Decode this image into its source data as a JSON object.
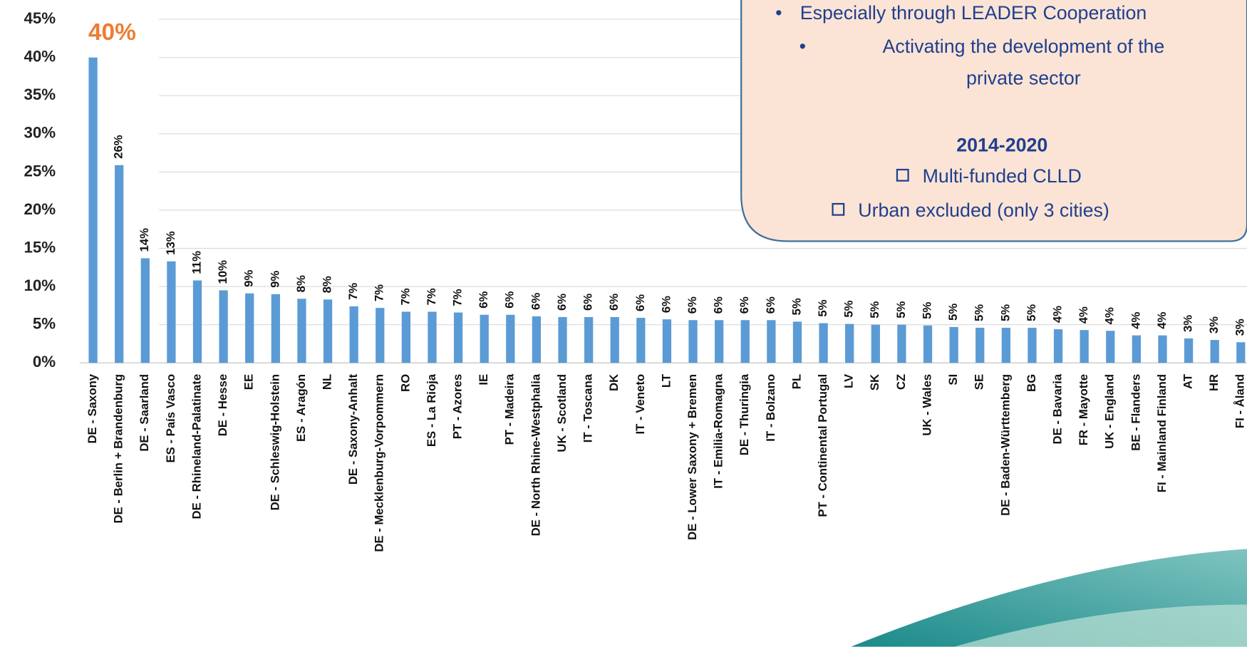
{
  "chart_data": {
    "type": "bar",
    "categories": [
      "DE - Saxony",
      "DE - Berlin + Brandenburg",
      "DE - Saarland",
      "ES - País Vasco",
      "DE - Rhineland-Palatinate",
      "DE - Hesse",
      "EE",
      "DE - Schleswig-Holstein",
      "ES - Aragón",
      "NL",
      "DE - Saxony-Anhalt",
      "DE - Mecklenburg-Vorpommern",
      "RO",
      "ES - La Rioja",
      "PT - Azores",
      "IE",
      "PT - Madeira",
      "DE - North Rhine-Westphalia",
      "UK - Scotland",
      "IT - Toscana",
      "DK",
      "IT - Veneto",
      "LT",
      "DE - Lower Saxony + Bremen",
      "IT - Emilia-Romagna",
      "DE - Thuringia",
      "IT - Bolzano",
      "PL",
      "PT - Continental Portugal",
      "LV",
      "SK",
      "CZ",
      "UK - Wales",
      "SI",
      "SE",
      "DE - Baden-Württemberg",
      "BG",
      "DE - Bavaria",
      "FR - Mayotte",
      "UK - England",
      "BE - Flanders",
      "FI - Mainland Finland",
      "AT",
      "HR",
      "FI - Åland"
    ],
    "values": [
      40,
      25.9,
      13.7,
      13.3,
      10.8,
      9.5,
      9.1,
      9.0,
      8.4,
      8.3,
      7.4,
      7.2,
      6.7,
      6.7,
      6.6,
      6.3,
      6.3,
      6.1,
      6.0,
      6.0,
      6.0,
      5.9,
      5.7,
      5.6,
      5.6,
      5.6,
      5.6,
      5.4,
      5.2,
      5.1,
      5.0,
      5.0,
      4.9,
      4.7,
      4.6,
      4.6,
      4.6,
      4.4,
      4.3,
      4.2,
      3.6,
      3.6,
      3.2,
      3.0,
      2.7
    ],
    "value_labels": [
      "40%",
      "26%",
      "14%",
      "13%",
      "11%",
      "10%",
      "9%",
      "9%",
      "8%",
      "8%",
      "7%",
      "7%",
      "7%",
      "7%",
      "7%",
      "6%",
      "6%",
      "6%",
      "6%",
      "6%",
      "6%",
      "6%",
      "6%",
      "6%",
      "6%",
      "6%",
      "6%",
      "5%",
      "5%",
      "5%",
      "5%",
      "5%",
      "5%",
      "5%",
      "5%",
      "5%",
      "5%",
      "4%",
      "4%",
      "4%",
      "4%",
      "4%",
      "3%",
      "3%",
      "3%"
    ],
    "color": "#5b9bd5",
    "highlight_color": "#ed7d31",
    "ylim": [
      0,
      45
    ],
    "yticks": [
      {
        "value": 0,
        "label": "0%"
      },
      {
        "value": 5,
        "label": "5%"
      },
      {
        "value": 10,
        "label": "10%"
      },
      {
        "value": 15,
        "label": "15%"
      },
      {
        "value": 20,
        "label": "20%"
      },
      {
        "value": 25,
        "label": "25%"
      },
      {
        "value": 30,
        "label": "30%"
      },
      {
        "value": 35,
        "label": "35%"
      },
      {
        "value": 40,
        "label": "40%"
      },
      {
        "value": 45,
        "label": "45%"
      }
    ],
    "grid": true
  },
  "panel": {
    "bullets": [
      "Especially through LEADER Cooperation",
      "Activating the development of the",
      "private sector"
    ],
    "heading": "2014-2020",
    "items": [
      "Multi-funded CLLD",
      "Urban excluded (only 3 cities)"
    ]
  }
}
